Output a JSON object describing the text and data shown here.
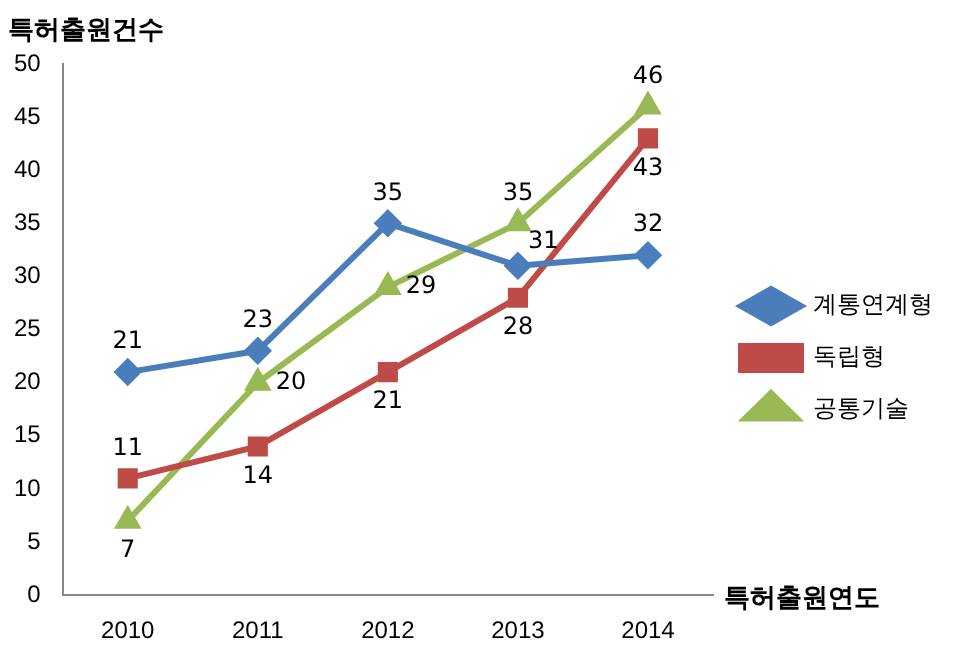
{
  "chart_data": {
    "type": "line",
    "ylabel": "특허출원건수",
    "xlabel": "특허출원연도",
    "categories": [
      "2010",
      "2011",
      "2012",
      "2013",
      "2014"
    ],
    "series": [
      {
        "name": "계통연계형",
        "color": "#4a7ebb",
        "marker": "diamond",
        "values": [
          21,
          23,
          35,
          31,
          32
        ]
      },
      {
        "name": "독립형",
        "color": "#be4b48",
        "marker": "square",
        "values": [
          11,
          14,
          21,
          28,
          43
        ]
      },
      {
        "name": "공통기술",
        "color": "#98b954",
        "marker": "triangle",
        "values": [
          7,
          20,
          29,
          35,
          46
        ]
      }
    ],
    "ylim": [
      0,
      50
    ],
    "yticks": [
      0,
      5,
      10,
      15,
      20,
      25,
      30,
      35,
      40,
      45,
      50
    ],
    "grid": false,
    "legend": "right",
    "data_labels": true
  }
}
